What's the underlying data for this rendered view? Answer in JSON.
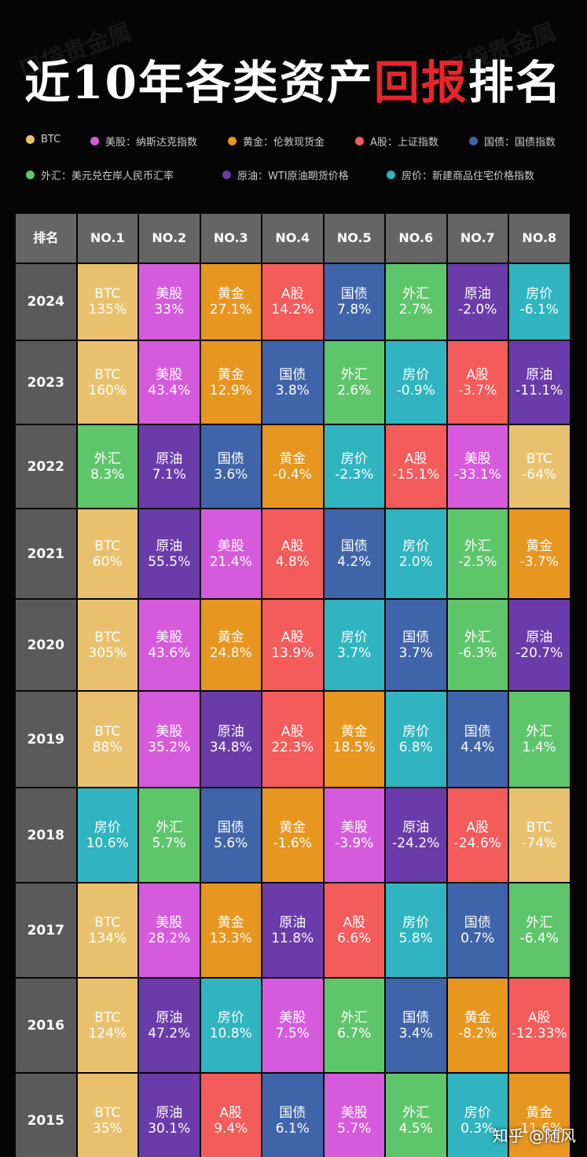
{
  "watermark": "口袋贵金属",
  "title": {
    "before": "近10年各类资产",
    "highlight": "回报",
    "after": "排名"
  },
  "legend": [
    {
      "label": "BTC",
      "color": "#e9c16e"
    },
    {
      "label": "美股：纳斯达克指数",
      "color": "#d65bdc"
    },
    {
      "label": "黄金：伦敦现货金",
      "color": "#e7961f"
    },
    {
      "label": "A股：上证指数",
      "color": "#f45b5b"
    },
    {
      "label": "国债：国债指数",
      "color": "#3f64a9"
    },
    {
      "label": "外汇：美元兑在岸人民币汇率",
      "color": "#5fc56b"
    },
    {
      "label": "原油：WTI原油期货价格",
      "color": "#6b3ba9"
    },
    {
      "label": "房价：新建商品住宅价格指数",
      "color": "#2fb4c0"
    }
  ],
  "table": {
    "header": [
      "排名",
      "NO.1",
      "NO.2",
      "NO.3",
      "NO.4",
      "NO.5",
      "NO.6",
      "NO.7",
      "NO.8"
    ],
    "rows": [
      {
        "year": "2024",
        "cells": [
          {
            "asset": "BTC",
            "value": "135%"
          },
          {
            "asset": "美股",
            "value": "33%"
          },
          {
            "asset": "黄金",
            "value": "27.1%"
          },
          {
            "asset": "A股",
            "value": "14.2%"
          },
          {
            "asset": "国债",
            "value": "7.8%"
          },
          {
            "asset": "外汇",
            "value": "2.7%"
          },
          {
            "asset": "原油",
            "value": "-2.0%"
          },
          {
            "asset": "房价",
            "value": "-6.1%"
          }
        ]
      },
      {
        "year": "2023",
        "cells": [
          {
            "asset": "BTC",
            "value": "160%"
          },
          {
            "asset": "美股",
            "value": "43.4%"
          },
          {
            "asset": "黄金",
            "value": "12.9%"
          },
          {
            "asset": "国债",
            "value": "3.8%"
          },
          {
            "asset": "外汇",
            "value": "2.6%"
          },
          {
            "asset": "房价",
            "value": "-0.9%"
          },
          {
            "asset": "A股",
            "value": "-3.7%"
          },
          {
            "asset": "原油",
            "value": "-11.1%"
          }
        ]
      },
      {
        "year": "2022",
        "cells": [
          {
            "asset": "外汇",
            "value": "8.3%"
          },
          {
            "asset": "原油",
            "value": "7.1%"
          },
          {
            "asset": "国债",
            "value": "3.6%"
          },
          {
            "asset": "黄金",
            "value": "-0.4%"
          },
          {
            "asset": "房价",
            "value": "-2.3%"
          },
          {
            "asset": "A股",
            "value": "-15.1%"
          },
          {
            "asset": "美股",
            "value": "-33.1%"
          },
          {
            "asset": "BTC",
            "value": "-64%"
          }
        ]
      },
      {
        "year": "2021",
        "cells": [
          {
            "asset": "BTC",
            "value": "60%"
          },
          {
            "asset": "原油",
            "value": "55.5%"
          },
          {
            "asset": "美股",
            "value": "21.4%"
          },
          {
            "asset": "A股",
            "value": "4.8%"
          },
          {
            "asset": "国债",
            "value": "4.2%"
          },
          {
            "asset": "房价",
            "value": "2.0%"
          },
          {
            "asset": "外汇",
            "value": "-2.5%"
          },
          {
            "asset": "黄金",
            "value": "-3.7%"
          }
        ]
      },
      {
        "year": "2020",
        "cells": [
          {
            "asset": "BTC",
            "value": "305%"
          },
          {
            "asset": "美股",
            "value": "43.6%"
          },
          {
            "asset": "黄金",
            "value": "24.8%"
          },
          {
            "asset": "A股",
            "value": "13.9%"
          },
          {
            "asset": "房价",
            "value": "3.7%"
          },
          {
            "asset": "国债",
            "value": "3.7%"
          },
          {
            "asset": "外汇",
            "value": "-6.3%"
          },
          {
            "asset": "原油",
            "value": "-20.7%"
          }
        ]
      },
      {
        "year": "2019",
        "cells": [
          {
            "asset": "BTC",
            "value": "88%"
          },
          {
            "asset": "美股",
            "value": "35.2%"
          },
          {
            "asset": "原油",
            "value": "34.8%"
          },
          {
            "asset": "A股",
            "value": "22.3%"
          },
          {
            "asset": "黄金",
            "value": "18.5%"
          },
          {
            "asset": "房价",
            "value": "6.8%"
          },
          {
            "asset": "国债",
            "value": "4.4%"
          },
          {
            "asset": "外汇",
            "value": "1.4%"
          }
        ]
      },
      {
        "year": "2018",
        "cells": [
          {
            "asset": "房价",
            "value": "10.6%"
          },
          {
            "asset": "外汇",
            "value": "5.7%"
          },
          {
            "asset": "国债",
            "value": "5.6%"
          },
          {
            "asset": "黄金",
            "value": "-1.6%"
          },
          {
            "asset": "美股",
            "value": "-3.9%"
          },
          {
            "asset": "原油",
            "value": "-24.2%"
          },
          {
            "asset": "A股",
            "value": "-24.6%"
          },
          {
            "asset": "BTC",
            "value": "-74%"
          }
        ]
      },
      {
        "year": "2017",
        "cells": [
          {
            "asset": "BTC",
            "value": "134%"
          },
          {
            "asset": "美股",
            "value": "28.2%"
          },
          {
            "asset": "黄金",
            "value": "13.3%"
          },
          {
            "asset": "原油",
            "value": "11.8%"
          },
          {
            "asset": "A股",
            "value": "6.6%"
          },
          {
            "asset": "房价",
            "value": "5.8%"
          },
          {
            "asset": "国债",
            "value": "0.7%"
          },
          {
            "asset": "外汇",
            "value": "-6.4%"
          }
        ]
      },
      {
        "year": "2016",
        "cells": [
          {
            "asset": "BTC",
            "value": "124%"
          },
          {
            "asset": "原油",
            "value": "47.2%"
          },
          {
            "asset": "房价",
            "value": "10.8%"
          },
          {
            "asset": "美股",
            "value": "7.5%"
          },
          {
            "asset": "外汇",
            "value": "6.7%"
          },
          {
            "asset": "国债",
            "value": "3.4%"
          },
          {
            "asset": "黄金",
            "value": "-8.2%"
          },
          {
            "asset": "A股",
            "value": "-12.33%"
          }
        ]
      },
      {
        "year": "2015",
        "cells": [
          {
            "asset": "BTC",
            "value": "35%"
          },
          {
            "asset": "原油",
            "value": "30.1%"
          },
          {
            "asset": "A股",
            "value": "9.4%"
          },
          {
            "asset": "国债",
            "value": "6.1%"
          },
          {
            "asset": "美股",
            "value": "5.7%"
          },
          {
            "asset": "外汇",
            "value": "4.5%"
          },
          {
            "asset": "房价",
            "value": "0.3%"
          },
          {
            "asset": "黄金",
            "value": "-11.6%"
          }
        ]
      }
    ]
  },
  "footer": "知乎 @随风"
}
